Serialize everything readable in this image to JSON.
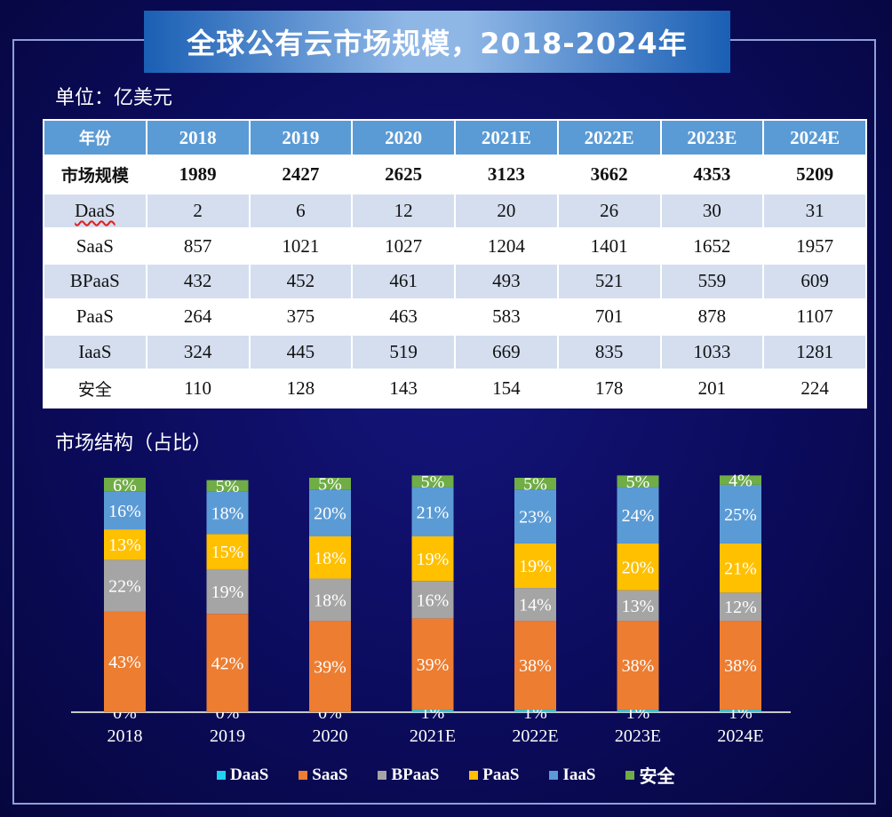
{
  "title": "全球公有云市场规模，2018-2024年",
  "unit_label": "单位：亿美元",
  "section_label": "市场结构（占比）",
  "table": {
    "header": [
      "年份",
      "2018",
      "2019",
      "2020",
      "2021E",
      "2022E",
      "2023E",
      "2024E"
    ],
    "rows": [
      {
        "label": "市场规模",
        "values": [
          "1989",
          "2427",
          "2625",
          "3123",
          "3662",
          "4353",
          "5209"
        ]
      },
      {
        "label": "DaaS",
        "values": [
          "2",
          "6",
          "12",
          "20",
          "26",
          "30",
          "31"
        ]
      },
      {
        "label": "SaaS",
        "values": [
          "857",
          "1021",
          "1027",
          "1204",
          "1401",
          "1652",
          "1957"
        ]
      },
      {
        "label": "BPaaS",
        "values": [
          "432",
          "452",
          "461",
          "493",
          "521",
          "559",
          "609"
        ]
      },
      {
        "label": "PaaS",
        "values": [
          "264",
          "375",
          "463",
          "583",
          "701",
          "878",
          "1107"
        ]
      },
      {
        "label": "IaaS",
        "values": [
          "324",
          "445",
          "519",
          "669",
          "835",
          "1033",
          "1281"
        ]
      },
      {
        "label": "安全",
        "values": [
          "110",
          "128",
          "143",
          "154",
          "178",
          "201",
          "224"
        ]
      }
    ]
  },
  "chart_data": {
    "type": "bar",
    "stacked": true,
    "categories": [
      "2018",
      "2019",
      "2020",
      "2021E",
      "2022E",
      "2023E",
      "2024E"
    ],
    "series": [
      {
        "name": "DaaS",
        "color": "#1fd2f0",
        "values": [
          0,
          0,
          0,
          1,
          1,
          1,
          1
        ],
        "labels": [
          "0%",
          "0%",
          "0%",
          "1%",
          "1%",
          "1%",
          "1%"
        ]
      },
      {
        "name": "SaaS",
        "color": "#ed7d31",
        "values": [
          43,
          42,
          39,
          39,
          38,
          38,
          38
        ],
        "labels": [
          "43%",
          "42%",
          "39%",
          "39%",
          "38%",
          "38%",
          "38%"
        ]
      },
      {
        "name": "BPaaS",
        "color": "#a5a5a5",
        "values": [
          22,
          19,
          18,
          16,
          14,
          13,
          12
        ],
        "labels": [
          "22%",
          "19%",
          "18%",
          "16%",
          "14%",
          "13%",
          "12%"
        ]
      },
      {
        "name": "PaaS",
        "color": "#ffc000",
        "values": [
          13,
          15,
          18,
          19,
          19,
          20,
          21
        ],
        "labels": [
          "13%",
          "15%",
          "18%",
          "19%",
          "19%",
          "20%",
          "21%"
        ]
      },
      {
        "name": "IaaS",
        "color": "#5b9bd5",
        "values": [
          16,
          18,
          20,
          21,
          23,
          24,
          25
        ],
        "labels": [
          "16%",
          "18%",
          "20%",
          "21%",
          "23%",
          "24%",
          "25%"
        ]
      },
      {
        "name": "安全",
        "color": "#70ad47",
        "values": [
          6,
          5,
          5,
          5,
          5,
          5,
          4
        ],
        "labels": [
          "6%",
          "5%",
          "5%",
          "5%",
          "5%",
          "5%",
          "4%"
        ]
      }
    ],
    "ylim": [
      0,
      100
    ],
    "legend": "bottom"
  }
}
